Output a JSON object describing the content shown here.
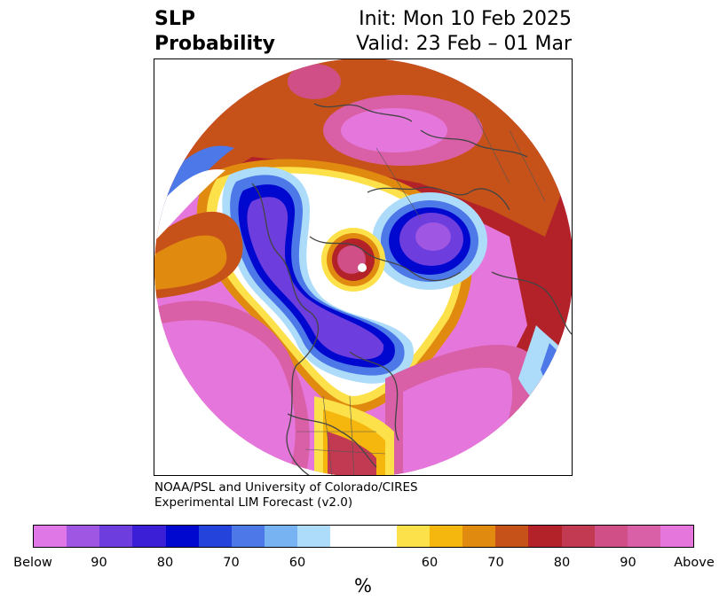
{
  "header": {
    "title_line1": "SLP",
    "title_line2": "Probability",
    "init": "Init: Mon 10 Feb 2025",
    "valid": "Valid: 23 Feb – 01 Mar"
  },
  "credit": {
    "line1": "NOAA/PSL and University of Colorado/CIRES",
    "line2": "Experimental LIM Forecast (v2.0)"
  },
  "colorbar": {
    "unit_label": "%",
    "colors": [
      "#e077e6",
      "#9f57e3",
      "#6d3ddd",
      "#3a1fd6",
      "#0008cf",
      "#2443db",
      "#4c78e8",
      "#77b3f2",
      "#acdcfa",
      "#ffffff",
      "#ffffff",
      "#fde14b",
      "#f5b70e",
      "#e08a10",
      "#c6521a",
      "#b32228",
      "#c23a52",
      "#cf4f86",
      "#d95fa7",
      "#e577dc"
    ],
    "ticks": [
      "Below",
      "90",
      "80",
      "70",
      "60",
      "60",
      "70",
      "80",
      "90",
      "Above"
    ]
  },
  "map": {
    "land_color": "#444444",
    "region": "Northern Hemisphere polar stereographic"
  }
}
